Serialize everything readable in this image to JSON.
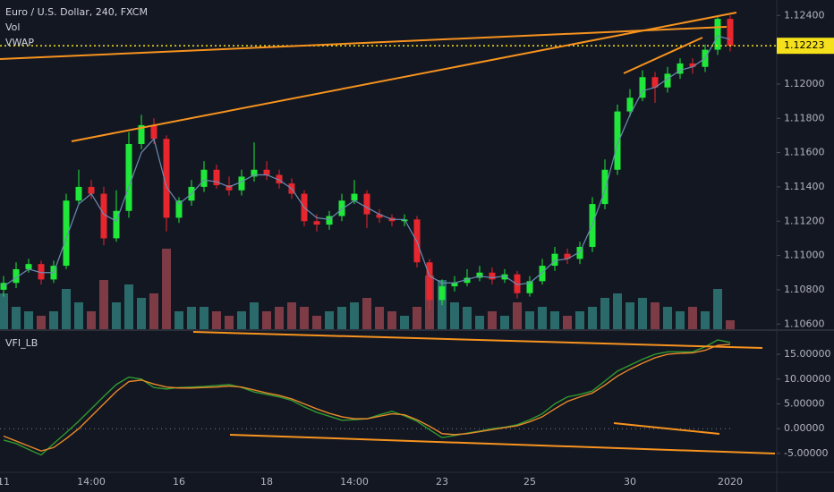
{
  "chart_data": [
    {
      "type": "candlestick",
      "title": "Euro / U.S. Dollar, 240, FXCM",
      "indicators": [
        "Vol",
        "VWAP"
      ],
      "categories": [
        "11",
        null,
        null,
        null,
        null,
        null,
        null,
        "14:00",
        null,
        null,
        null,
        null,
        null,
        null,
        "16",
        null,
        null,
        null,
        null,
        null,
        null,
        "18",
        null,
        null,
        null,
        null,
        null,
        null,
        "14:00",
        null,
        null,
        null,
        null,
        null,
        null,
        "23",
        null,
        null,
        null,
        null,
        null,
        null,
        "25",
        null,
        null,
        null,
        null,
        null,
        null,
        null,
        "30",
        null,
        null,
        null,
        null,
        null,
        null,
        null,
        "2020"
      ],
      "open": [
        1.108,
        1.1084,
        1.1092,
        1.1095,
        1.1086,
        1.1094,
        1.1132,
        1.114,
        1.1136,
        1.111,
        1.1126,
        1.1165,
        1.1176,
        1.1168,
        1.1122,
        1.1132,
        1.114,
        1.115,
        1.1141,
        1.1138,
        1.1146,
        1.115,
        1.1147,
        1.1142,
        1.1136,
        1.112,
        1.1118,
        1.1123,
        1.1132,
        1.1136,
        1.1124,
        1.1122,
        1.112,
        1.1121,
        1.1096,
        1.1074,
        1.1082,
        1.1084,
        1.1087,
        1.109,
        1.1086,
        1.1089,
        1.1078,
        1.1085,
        1.1094,
        1.1101,
        1.1098,
        1.1105,
        1.113,
        1.115,
        1.1184,
        1.1192,
        1.1204,
        1.1198,
        1.1206,
        1.1212,
        1.121,
        1.122,
        1.1238
      ],
      "high": [
        1.1088,
        1.1096,
        1.1098,
        1.1097,
        1.1097,
        1.1136,
        1.115,
        1.1144,
        1.114,
        1.1138,
        1.1172,
        1.1182,
        1.118,
        1.117,
        1.1134,
        1.1144,
        1.1155,
        1.1153,
        1.1146,
        1.115,
        1.1166,
        1.1155,
        1.115,
        1.1145,
        1.1138,
        1.1124,
        1.1126,
        1.1136,
        1.1144,
        1.1138,
        1.1127,
        1.1124,
        1.1124,
        1.1123,
        1.1098,
        1.1086,
        1.1088,
        1.1092,
        1.1094,
        1.1093,
        1.1092,
        1.1091,
        1.1088,
        1.1098,
        1.1105,
        1.1104,
        1.1108,
        1.1134,
        1.1156,
        1.1188,
        1.1197,
        1.1208,
        1.1207,
        1.121,
        1.1215,
        1.1215,
        1.1223,
        1.124,
        1.124
      ],
      "low": [
        1.1076,
        1.1081,
        1.109,
        1.1083,
        1.1084,
        1.1092,
        1.113,
        1.1133,
        1.1106,
        1.1108,
        1.1122,
        1.1162,
        1.1165,
        1.1114,
        1.1119,
        1.1129,
        1.1137,
        1.1139,
        1.1135,
        1.1135,
        1.1143,
        1.1144,
        1.1139,
        1.1133,
        1.1117,
        1.1114,
        1.1115,
        1.112,
        1.113,
        1.1116,
        1.1119,
        1.1117,
        1.1117,
        1.1093,
        1.1068,
        1.1071,
        1.1079,
        1.1082,
        1.1085,
        1.1083,
        1.1084,
        1.1075,
        1.1076,
        1.1083,
        1.1091,
        1.1095,
        1.1095,
        1.1102,
        1.1127,
        1.1147,
        1.1181,
        1.119,
        1.1189,
        1.1195,
        1.1203,
        1.1206,
        1.1207,
        1.1217,
        1.1219
      ],
      "close": [
        1.1084,
        1.1092,
        1.1095,
        1.1086,
        1.1094,
        1.1132,
        1.114,
        1.1136,
        1.111,
        1.1126,
        1.1165,
        1.1176,
        1.1168,
        1.1122,
        1.1132,
        1.114,
        1.115,
        1.1141,
        1.1138,
        1.1146,
        1.115,
        1.1147,
        1.1142,
        1.1136,
        1.112,
        1.1118,
        1.1123,
        1.1132,
        1.1136,
        1.1124,
        1.1122,
        1.112,
        1.1121,
        1.1096,
        1.1074,
        1.1082,
        1.1084,
        1.1087,
        1.109,
        1.1086,
        1.1089,
        1.1078,
        1.1085,
        1.1094,
        1.1101,
        1.1098,
        1.1105,
        1.113,
        1.115,
        1.1184,
        1.1192,
        1.1204,
        1.1198,
        1.1206,
        1.1212,
        1.121,
        1.122,
        1.1238,
        1.12223
      ],
      "volume": [
        40,
        25,
        20,
        15,
        20,
        45,
        30,
        20,
        55,
        30,
        50,
        35,
        40,
        90,
        20,
        25,
        25,
        20,
        15,
        20,
        30,
        20,
        25,
        30,
        25,
        15,
        20,
        25,
        30,
        35,
        25,
        20,
        15,
        25,
        60,
        55,
        30,
        25,
        15,
        20,
        15,
        30,
        20,
        25,
        20,
        15,
        20,
        25,
        35,
        40,
        30,
        35,
        30,
        25,
        20,
        25,
        20,
        45,
        10
      ],
      "vwap": [
        1.1082,
        1.1087,
        1.1092,
        1.109,
        1.109,
        1.111,
        1.113,
        1.1136,
        1.1124,
        1.112,
        1.114,
        1.116,
        1.1168,
        1.114,
        1.113,
        1.1136,
        1.1144,
        1.1143,
        1.114,
        1.1143,
        1.1147,
        1.1147,
        1.1144,
        1.1139,
        1.1128,
        1.1122,
        1.1121,
        1.1127,
        1.1132,
        1.1128,
        1.1124,
        1.1121,
        1.1121,
        1.1108,
        1.1088,
        1.1084,
        1.1084,
        1.1086,
        1.1088,
        1.1087,
        1.1088,
        1.1083,
        1.1084,
        1.109,
        1.1097,
        1.1098,
        1.1102,
        1.1118,
        1.1138,
        1.1165,
        1.1182,
        1.1196,
        1.1198,
        1.1203,
        1.1208,
        1.121,
        1.1215,
        1.1228,
        1.1226
      ],
      "up_color": "#1fe83a",
      "down_color": "#e8262e",
      "volume_up_color": "#2b6a6a",
      "volume_down_color": "#7d3b45",
      "vwap_color": "#6b8db3",
      "ylim": [
        1.1057,
        1.1249
      ],
      "yticks": [
        {
          "value": 1.124,
          "label": "1.12400"
        },
        {
          "value": 1.12,
          "label": "1.12000"
        },
        {
          "value": 1.118,
          "label": "1.11800"
        },
        {
          "value": 1.116,
          "label": "1.11600"
        },
        {
          "value": 1.114,
          "label": "1.11400"
        },
        {
          "value": 1.112,
          "label": "1.11200"
        },
        {
          "value": 1.11,
          "label": "1.11000"
        },
        {
          "value": 1.108,
          "label": "1.10800"
        },
        {
          "value": 1.106,
          "label": "1.10600"
        }
      ],
      "last_price": 1.12223,
      "last_price_color": "#f5e11b",
      "grid": true
    },
    {
      "type": "line",
      "title": "VFI_LB",
      "series": [
        {
          "color": "#2f9a2f",
          "values": [
            -2.3,
            -3.0,
            -4.2,
            -5.3,
            -3.0,
            -0.8,
            1.5,
            4.0,
            6.5,
            8.9,
            10.4,
            10.0,
            8.3,
            8.0,
            8.3,
            8.4,
            8.5,
            8.7,
            8.9,
            8.3,
            7.4,
            6.9,
            6.4,
            5.7,
            4.4,
            3.3,
            2.5,
            1.7,
            1.8,
            2.0,
            2.8,
            3.5,
            2.6,
            1.5,
            -0.2,
            -1.8,
            -1.4,
            -0.9,
            -0.5,
            0.0,
            0.3,
            0.8,
            1.8,
            3.0,
            5.0,
            6.4,
            6.9,
            7.6,
            9.6,
            11.6,
            12.8,
            14.0,
            15.0,
            15.5,
            15.5,
            15.5,
            16.5,
            17.9,
            17.4
          ]
        },
        {
          "color": "#e8892a",
          "values": [
            -1.5,
            -2.5,
            -3.5,
            -4.5,
            -3.8,
            -2.0,
            0.0,
            2.5,
            5.0,
            7.5,
            9.5,
            9.8,
            9.0,
            8.4,
            8.2,
            8.2,
            8.3,
            8.4,
            8.6,
            8.4,
            7.8,
            7.2,
            6.7,
            6.0,
            5.0,
            4.0,
            3.1,
            2.4,
            2.0,
            2.0,
            2.5,
            3.0,
            2.8,
            1.8,
            0.5,
            -1.0,
            -1.2,
            -1.0,
            -0.6,
            -0.2,
            0.2,
            0.6,
            1.4,
            2.4,
            4.0,
            5.5,
            6.4,
            7.2,
            8.8,
            10.6,
            12.0,
            13.2,
            14.3,
            15.0,
            15.2,
            15.3,
            15.8,
            16.8,
            17.0
          ]
        }
      ],
      "ylim": [
        -8.8,
        19.7
      ],
      "yticks": [
        {
          "value": 15,
          "label": "15.00000"
        },
        {
          "value": 10,
          "label": "10.00000"
        },
        {
          "value": 5,
          "label": "5.00000"
        },
        {
          "value": 0,
          "label": "0.00000"
        },
        {
          "value": -5,
          "label": "-5.00000"
        }
      ],
      "grid": true
    }
  ]
}
